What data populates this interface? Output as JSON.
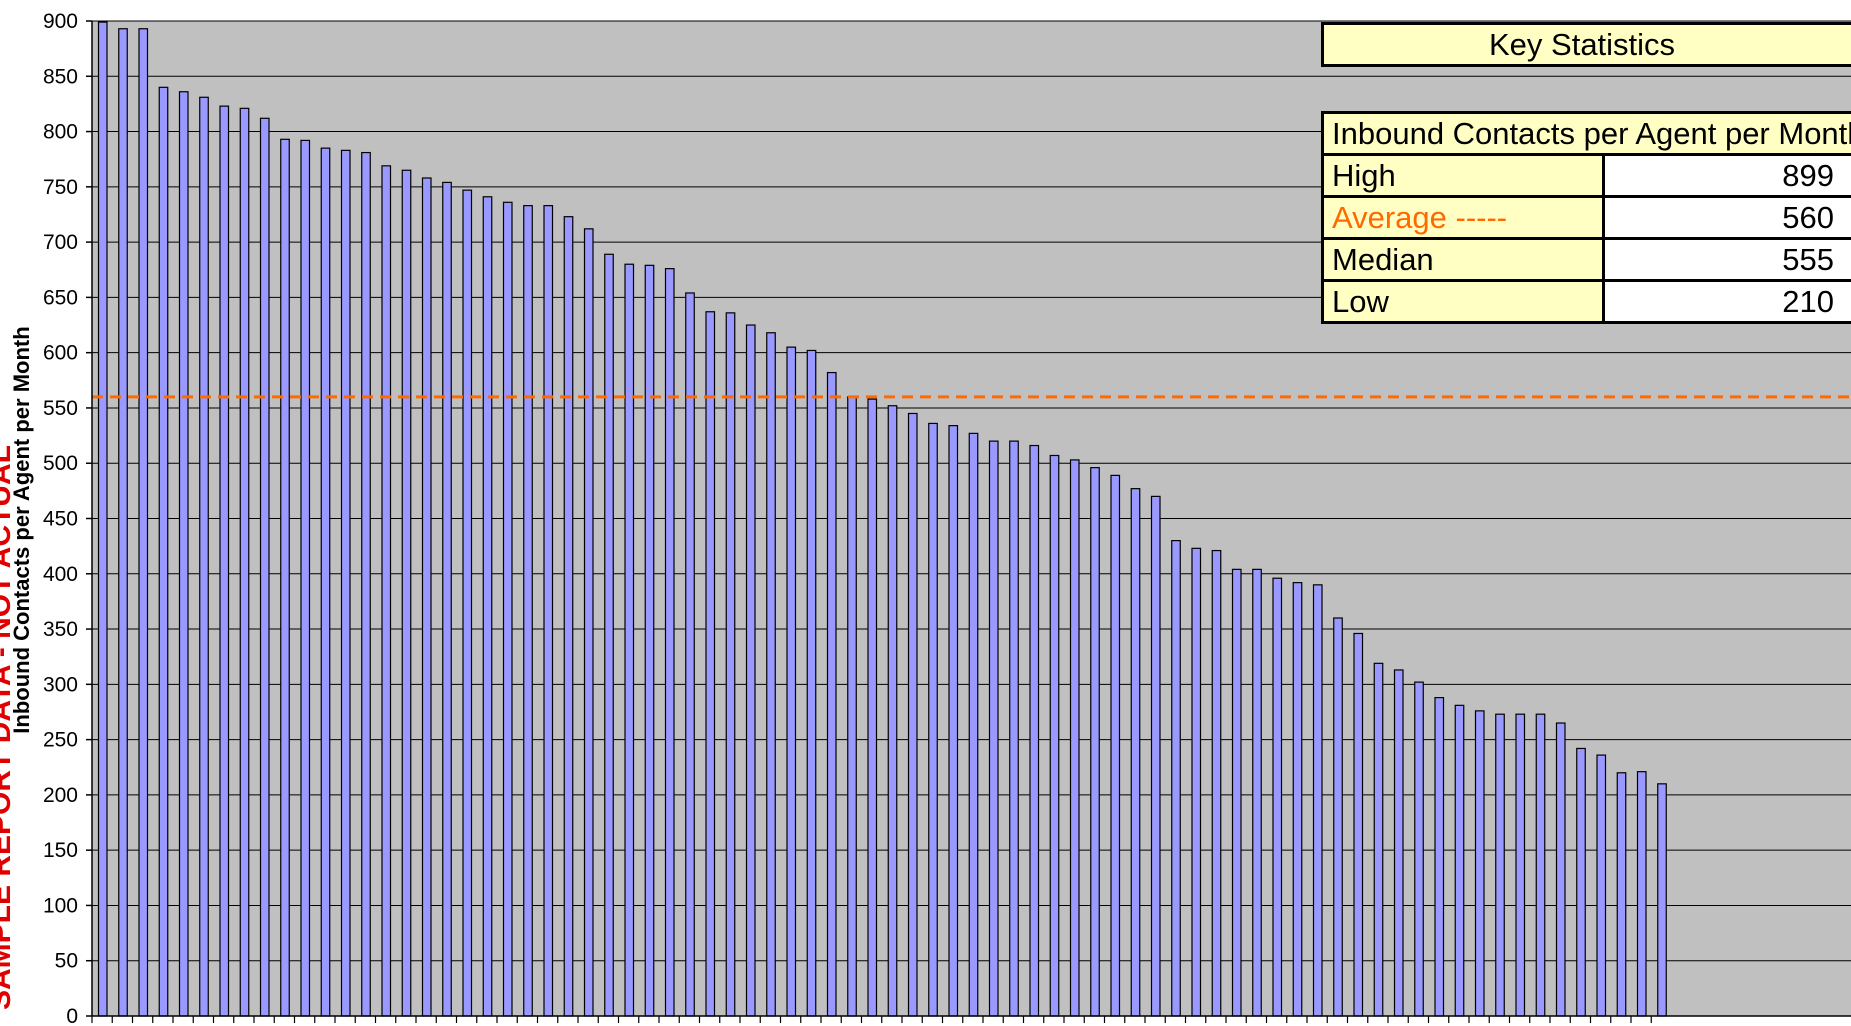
{
  "chart_data": {
    "type": "bar",
    "title": "",
    "xlabel": "",
    "ylabel": "Inbound Contacts per Agent per Month",
    "ylim": [
      0,
      900
    ],
    "yticks": [
      0,
      50,
      100,
      150,
      200,
      250,
      300,
      350,
      400,
      450,
      500,
      550,
      600,
      650,
      700,
      750,
      800,
      850,
      900
    ],
    "grid": true,
    "average_line": 560,
    "values": [
      899,
      893,
      893,
      840,
      836,
      831,
      823,
      821,
      812,
      793,
      792,
      785,
      783,
      781,
      769,
      765,
      758,
      754,
      747,
      741,
      736,
      733,
      733,
      723,
      712,
      689,
      680,
      679,
      676,
      654,
      637,
      636,
      625,
      618,
      605,
      602,
      582,
      560,
      558,
      552,
      545,
      536,
      534,
      527,
      520,
      520,
      516,
      507,
      503,
      496,
      489,
      477,
      470,
      430,
      423,
      421,
      404,
      404,
      396,
      392,
      390,
      360,
      346,
      319,
      313,
      302,
      288,
      281,
      276,
      273,
      273,
      273,
      265,
      242,
      236,
      220,
      221,
      210
    ]
  },
  "watermark": "SAMPLE REPORT DATA - NOT ACTUAL",
  "stats": {
    "title": "Key Statistics",
    "header": "Inbound Contacts per Agent per Month",
    "rows": [
      {
        "label": "High",
        "value": "899"
      },
      {
        "label": "Average -----",
        "value": "560"
      },
      {
        "label": "Median",
        "value": "555"
      },
      {
        "label": "Low",
        "value": "210"
      }
    ]
  },
  "colors": {
    "plot_bg": "#c0c0c0",
    "bar_fill": "#9999ff",
    "average_line": "#ff6a00",
    "stats_bg": "#ffffc4"
  }
}
